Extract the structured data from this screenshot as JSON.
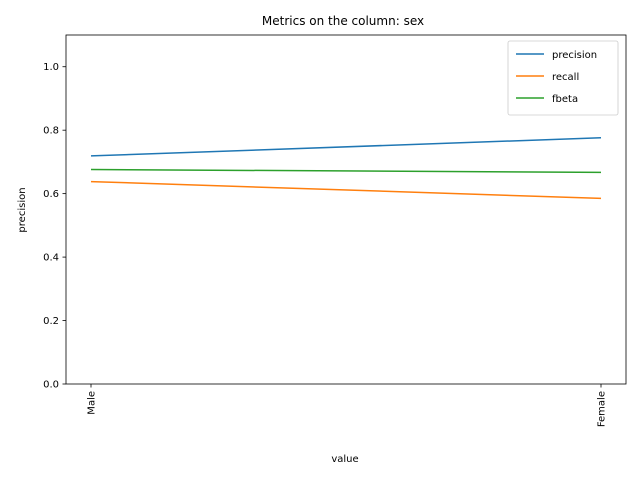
{
  "chart_data": {
    "type": "line",
    "title": "Metrics on the column: sex",
    "xlabel": "value",
    "ylabel": "precision",
    "categories": [
      "Male",
      "Female"
    ],
    "ylim": [
      0.0,
      1.1
    ],
    "yticks": [
      "0.0",
      "0.2",
      "0.4",
      "0.6",
      "0.8",
      "1.0"
    ],
    "ytick_values": [
      0.0,
      0.2,
      0.4,
      0.6,
      0.8,
      1.0
    ],
    "grid": false,
    "legend_position": "top-right",
    "series": [
      {
        "name": "precision",
        "values": [
          0.719,
          0.776
        ],
        "color": "#1f77b4"
      },
      {
        "name": "recall",
        "values": [
          0.638,
          0.585
        ],
        "color": "#ff7f0e"
      },
      {
        "name": "fbeta",
        "values": [
          0.676,
          0.667
        ],
        "color": "#2ca02c"
      }
    ]
  }
}
